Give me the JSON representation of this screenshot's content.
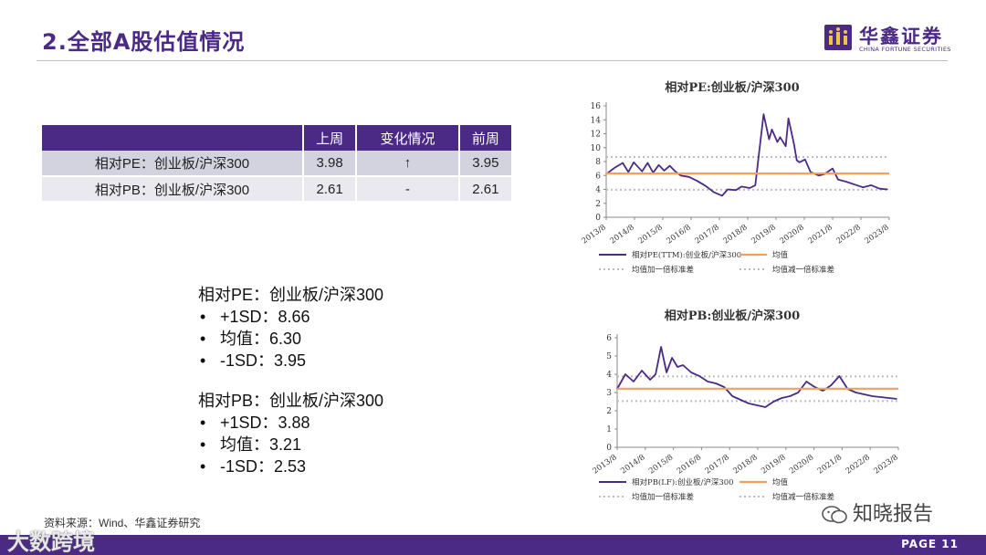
{
  "header": {
    "title": "2.全部A股估值情况",
    "logo_cn": "华鑫证券",
    "logo_en": "CHINA FORTUNE SECURITIES"
  },
  "table": {
    "columns": [
      "上周",
      "变化情况",
      "前周"
    ],
    "rows": [
      {
        "label": "相对PE：创业板/沪深300",
        "last_week": "3.98",
        "change": "↑",
        "prev_week": "3.95"
      },
      {
        "label": "相对PB：创业板/沪深300",
        "last_week": "2.61",
        "change": "-",
        "prev_week": "2.61"
      }
    ]
  },
  "stats": {
    "pe": {
      "title": "相对PE：创业板/沪深300",
      "items": [
        "+1SD：8.66",
        "均值：6.30",
        "-1SD：3.95"
      ]
    },
    "pb": {
      "title": "相对PB：创业板/沪深300",
      "items": [
        "+1SD：3.88",
        "均值：3.21",
        "-1SD：2.53"
      ]
    }
  },
  "source": "资料来源：Wind、华鑫证券研究",
  "page_label": "PAGE 11",
  "watermark_left": "大数跨境",
  "watermark_right": "知晓报告",
  "colors": {
    "brand": "#4b2a86",
    "series": "#4b2a86",
    "mean": "#f0a160",
    "band": "#bdbdbd"
  },
  "chart_data": [
    {
      "type": "line",
      "title": "相对PE:创业板/沪深300",
      "x_ticks": [
        "2013/8",
        "2014/8",
        "2015/8",
        "2016/8",
        "2017/8",
        "2018/8",
        "2019/8",
        "2020/8",
        "2021/8",
        "2022/8",
        "2023/8"
      ],
      "ylim": [
        0,
        16
      ],
      "y_ticks": [
        0,
        2,
        4,
        6,
        8,
        10,
        12,
        14,
        16
      ],
      "series": [
        {
          "name": "相对PE(TTM):创业板/沪深300",
          "x": [
            2013.6,
            2013.9,
            2014.2,
            2014.4,
            2014.6,
            2014.9,
            2015.1,
            2015.3,
            2015.5,
            2015.7,
            2015.9,
            2016.1,
            2016.3,
            2016.6,
            2016.9,
            2017.2,
            2017.5,
            2017.8,
            2018.0,
            2018.3,
            2018.5,
            2018.8,
            2019.0,
            2019.3,
            2019.5,
            2019.6,
            2019.8,
            2019.9,
            2020.1,
            2020.2,
            2020.4,
            2020.5,
            2020.6,
            2020.8,
            2021.0,
            2021.3,
            2021.5,
            2021.8,
            2022.0,
            2022.3,
            2022.6,
            2022.9,
            2023.2,
            2023.5,
            2023.8
          ],
          "values": [
            6.2,
            7.1,
            7.8,
            6.5,
            7.9,
            6.6,
            7.8,
            6.4,
            7.5,
            6.7,
            7.4,
            6.6,
            6.0,
            5.8,
            5.2,
            4.5,
            3.6,
            3.1,
            4.0,
            3.9,
            4.4,
            4.2,
            4.6,
            14.8,
            11.2,
            12.6,
            10.8,
            11.5,
            10.2,
            14.2,
            10.5,
            8.2,
            7.9,
            8.3,
            6.5,
            6.0,
            6.2,
            7.0,
            5.4,
            5.1,
            4.7,
            4.3,
            4.6,
            4.1,
            4.0
          ]
        },
        {
          "name": "均值",
          "values": [
            6.3
          ]
        },
        {
          "name": "均值加一倍标准差",
          "values": [
            8.66
          ]
        },
        {
          "name": "均值减一倍标准差",
          "values": [
            3.95
          ]
        }
      ]
    },
    {
      "type": "line",
      "title": "相对PB:创业板/沪深300",
      "x_ticks": [
        "2013/8",
        "2014/8",
        "2015/8",
        "2016/8",
        "2017/8",
        "2018/8",
        "2019/8",
        "2020/8",
        "2021/8",
        "2022/8",
        "2023/8"
      ],
      "ylim": [
        0,
        6
      ],
      "y_ticks": [
        0,
        1,
        2,
        3,
        4,
        5,
        6
      ],
      "series": [
        {
          "name": "相对PB(LF):创业板/沪深300",
          "x": [
            2013.6,
            2013.9,
            2014.2,
            2014.5,
            2014.8,
            2015.0,
            2015.2,
            2015.4,
            2015.6,
            2015.8,
            2016.0,
            2016.3,
            2016.6,
            2016.9,
            2017.2,
            2017.5,
            2017.8,
            2018.1,
            2018.4,
            2018.7,
            2019.0,
            2019.3,
            2019.6,
            2019.9,
            2020.2,
            2020.5,
            2020.8,
            2021.1,
            2021.4,
            2021.7,
            2022.0,
            2022.3,
            2022.6,
            2022.9,
            2023.2,
            2023.5,
            2023.8
          ],
          "values": [
            3.2,
            4.0,
            3.6,
            4.2,
            3.7,
            4.0,
            5.5,
            4.1,
            4.9,
            4.4,
            4.5,
            4.1,
            3.9,
            3.6,
            3.5,
            3.3,
            2.8,
            2.6,
            2.4,
            2.3,
            2.2,
            2.5,
            2.7,
            2.8,
            3.0,
            3.6,
            3.3,
            3.1,
            3.4,
            3.9,
            3.2,
            3.0,
            2.9,
            2.8,
            2.75,
            2.7,
            2.65
          ]
        },
        {
          "name": "均值",
          "values": [
            3.21
          ]
        },
        {
          "name": "均值加一倍标准差",
          "values": [
            3.88
          ]
        },
        {
          "name": "均值减一倍标准差",
          "values": [
            2.53
          ]
        }
      ]
    }
  ]
}
